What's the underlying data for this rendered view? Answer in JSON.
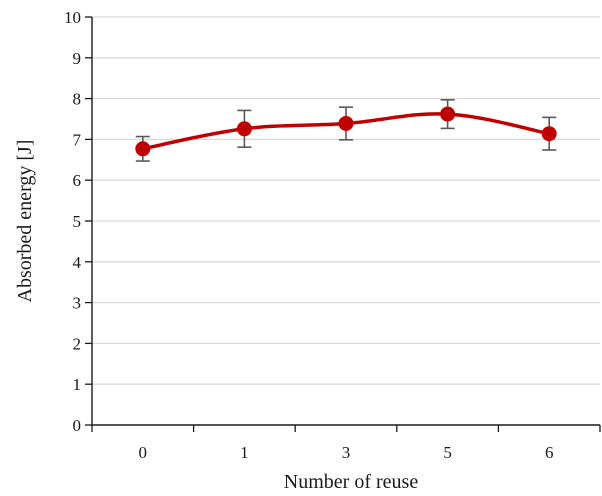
{
  "chart_data": {
    "type": "line",
    "title": "",
    "xlabel": "Number of reuse",
    "ylabel": "Absorbed energy [J]",
    "categories": [
      "0",
      "1",
      "3",
      "5",
      "6"
    ],
    "series": [
      {
        "values": [
          6.77,
          7.26,
          7.39,
          7.62,
          7.14
        ],
        "error": [
          0.3,
          0.45,
          0.4,
          0.35,
          0.4
        ],
        "color": "#c00000",
        "smooth": true
      }
    ],
    "ylim": [
      0,
      10
    ],
    "yticks": [
      "0",
      "1",
      "2",
      "3",
      "4",
      "5",
      "6",
      "7",
      "8",
      "9",
      "10"
    ],
    "grid": "horizontal",
    "colors": {
      "gridline": "#d9d9d9",
      "axis": "#1a1a1a",
      "errorbar": "#595959"
    }
  }
}
